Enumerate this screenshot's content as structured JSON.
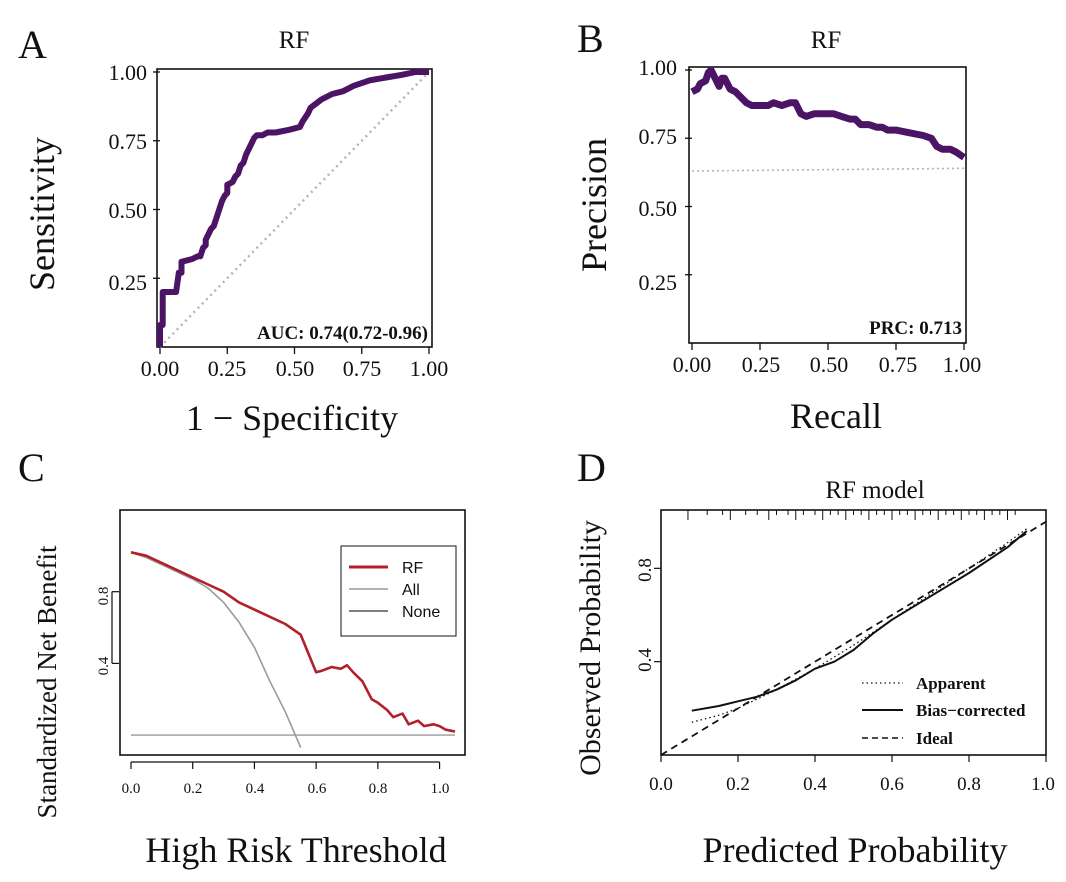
{
  "colors": {
    "roc_line": "#4b1464",
    "dca_model": "#b3202a",
    "dca_all": "#9a9a9a",
    "dca_none": "#555555",
    "reference": "#b4b4b4",
    "axis": "#111111"
  },
  "chart_data": [
    {
      "panel_letter": "A",
      "type": "line",
      "title": "RF",
      "xlabel": "1 − Specificity",
      "ylabel": "Sensitivity",
      "xlim": [
        0,
        1
      ],
      "ylim": [
        0,
        1
      ],
      "xticks": [
        "0.00",
        "0.25",
        "0.50",
        "0.75",
        "1.00"
      ],
      "yticks": [
        "0.25",
        "0.50",
        "0.75",
        "1.00"
      ],
      "annotation": "AUC: 0.74(0.72-0.96)",
      "series": [
        {
          "name": "ROC",
          "x": [
            0.0,
            0.0,
            0.01,
            0.01,
            0.06,
            0.07,
            0.08,
            0.08,
            0.12,
            0.14,
            0.15,
            0.16,
            0.17,
            0.17,
            0.19,
            0.2,
            0.21,
            0.23,
            0.24,
            0.25,
            0.25,
            0.27,
            0.28,
            0.29,
            0.3,
            0.31,
            0.32,
            0.33,
            0.34,
            0.35,
            0.36,
            0.38,
            0.4,
            0.43,
            0.48,
            0.52,
            0.53,
            0.55,
            0.56,
            0.6,
            0.64,
            0.68,
            0.72,
            0.78,
            0.84,
            0.9,
            0.95,
            1.0
          ],
          "y": [
            0.0,
            0.08,
            0.08,
            0.2,
            0.2,
            0.27,
            0.27,
            0.31,
            0.32,
            0.33,
            0.33,
            0.36,
            0.37,
            0.39,
            0.43,
            0.44,
            0.47,
            0.53,
            0.55,
            0.56,
            0.59,
            0.6,
            0.62,
            0.63,
            0.66,
            0.67,
            0.7,
            0.72,
            0.74,
            0.76,
            0.77,
            0.77,
            0.78,
            0.78,
            0.79,
            0.8,
            0.82,
            0.85,
            0.87,
            0.9,
            0.92,
            0.93,
            0.95,
            0.97,
            0.98,
            0.99,
            1.0,
            1.0
          ]
        },
        {
          "name": "chance",
          "x": [
            0,
            1
          ],
          "y": [
            0,
            1
          ]
        }
      ]
    },
    {
      "panel_letter": "B",
      "type": "line",
      "title": "RF",
      "xlabel": "Recall",
      "ylabel": "Precision",
      "xlim": [
        0,
        1
      ],
      "ylim": [
        0,
        1
      ],
      "xticks": [
        "0.00",
        "0.25",
        "0.50",
        "0.75",
        "1.00"
      ],
      "yticks": [
        "0.25",
        "0.50",
        "0.75",
        "1.00"
      ],
      "annotation": "PRC: 0.713",
      "series": [
        {
          "name": "PR",
          "x": [
            0.0,
            0.02,
            0.03,
            0.05,
            0.06,
            0.07,
            0.08,
            0.09,
            0.1,
            0.11,
            0.12,
            0.14,
            0.16,
            0.18,
            0.2,
            0.22,
            0.25,
            0.28,
            0.3,
            0.33,
            0.36,
            0.38,
            0.4,
            0.42,
            0.45,
            0.48,
            0.52,
            0.55,
            0.58,
            0.6,
            0.62,
            0.65,
            0.68,
            0.7,
            0.72,
            0.75,
            0.8,
            0.85,
            0.88,
            0.9,
            0.92,
            0.95,
            0.97,
            1.0
          ],
          "y": [
            0.92,
            0.93,
            0.95,
            0.96,
            0.99,
            1.0,
            0.98,
            0.96,
            0.94,
            0.97,
            0.97,
            0.93,
            0.92,
            0.9,
            0.88,
            0.87,
            0.87,
            0.87,
            0.88,
            0.87,
            0.88,
            0.88,
            0.84,
            0.83,
            0.84,
            0.84,
            0.84,
            0.83,
            0.82,
            0.82,
            0.8,
            0.8,
            0.79,
            0.79,
            0.78,
            0.78,
            0.77,
            0.76,
            0.75,
            0.72,
            0.71,
            0.71,
            0.7,
            0.68
          ]
        },
        {
          "name": "baseline",
          "x": [
            0,
            1
          ],
          "y": [
            0.63,
            0.64
          ]
        }
      ]
    },
    {
      "panel_letter": "C",
      "type": "line",
      "title": "",
      "xlabel": "High Risk Threshold",
      "ylabel": "Standardized Net Benefit",
      "xlim": [
        0,
        1.05
      ],
      "ylim": [
        -0.1,
        1.2
      ],
      "xticks": [
        "0.0",
        "0.2",
        "0.4",
        "0.6",
        "0.8",
        "1.0"
      ],
      "yticks": [
        "0.4",
        "0.8"
      ],
      "legend": [
        "RF",
        "All",
        "None"
      ],
      "legend_position": "top-right",
      "series": [
        {
          "name": "RF",
          "x": [
            0.0,
            0.05,
            0.1,
            0.15,
            0.2,
            0.25,
            0.3,
            0.35,
            0.4,
            0.45,
            0.5,
            0.55,
            0.6,
            0.62,
            0.65,
            0.68,
            0.7,
            0.72,
            0.75,
            0.78,
            0.8,
            0.83,
            0.85,
            0.88,
            0.9,
            0.93,
            0.95,
            0.98,
            1.0,
            1.02,
            1.05
          ],
          "y": [
            1.02,
            1.0,
            0.96,
            0.92,
            0.88,
            0.84,
            0.8,
            0.74,
            0.7,
            0.66,
            0.62,
            0.56,
            0.35,
            0.36,
            0.38,
            0.37,
            0.39,
            0.35,
            0.3,
            0.2,
            0.18,
            0.14,
            0.1,
            0.12,
            0.06,
            0.08,
            0.05,
            0.06,
            0.05,
            0.03,
            0.02
          ]
        },
        {
          "name": "All",
          "x": [
            0.0,
            0.05,
            0.1,
            0.15,
            0.2,
            0.25,
            0.3,
            0.35,
            0.4,
            0.45,
            0.5,
            0.55
          ],
          "y": [
            1.02,
            0.99,
            0.95,
            0.91,
            0.87,
            0.82,
            0.74,
            0.63,
            0.49,
            0.3,
            0.13,
            -0.07
          ]
        },
        {
          "name": "None",
          "x": [
            0,
            1.05
          ],
          "y": [
            0,
            0
          ]
        }
      ]
    },
    {
      "panel_letter": "D",
      "type": "line",
      "title": "RF model",
      "xlabel": "Predicted Probability",
      "ylabel": "Observed Probability",
      "xlim": [
        0,
        1
      ],
      "ylim": [
        0,
        1
      ],
      "xticks": [
        "0.0",
        "0.2",
        "0.4",
        "0.6",
        "0.8",
        "1.0"
      ],
      "yticks": [
        "0.4",
        "0.8"
      ],
      "legend": [
        "Apparent",
        "Bias−corrected",
        "Ideal"
      ],
      "legend_position": "bottom-right",
      "series": [
        {
          "name": "Apparent",
          "x": [
            0.08,
            0.15,
            0.2,
            0.3,
            0.4,
            0.5,
            0.6,
            0.7,
            0.8,
            0.9,
            0.95
          ],
          "y": [
            0.14,
            0.17,
            0.2,
            0.28,
            0.37,
            0.47,
            0.58,
            0.69,
            0.8,
            0.91,
            0.97
          ]
        },
        {
          "name": "Bias−corrected",
          "x": [
            0.08,
            0.15,
            0.2,
            0.25,
            0.3,
            0.35,
            0.4,
            0.45,
            0.5,
            0.55,
            0.6,
            0.7,
            0.8,
            0.9,
            0.95
          ],
          "y": [
            0.19,
            0.21,
            0.23,
            0.25,
            0.28,
            0.32,
            0.37,
            0.4,
            0.45,
            0.52,
            0.58,
            0.68,
            0.78,
            0.89,
            0.96
          ]
        },
        {
          "name": "Ideal",
          "x": [
            0,
            1
          ],
          "y": [
            0,
            1
          ]
        }
      ],
      "rug": [
        0.07,
        0.12,
        0.16,
        0.18,
        0.22,
        0.25,
        0.28,
        0.3,
        0.33,
        0.35,
        0.37,
        0.4,
        0.42,
        0.44,
        0.46,
        0.48,
        0.5,
        0.52,
        0.54,
        0.56,
        0.58,
        0.6,
        0.62,
        0.64,
        0.66,
        0.68,
        0.7,
        0.72,
        0.74,
        0.76,
        0.78,
        0.8,
        0.82,
        0.84,
        0.86,
        0.88,
        0.9,
        0.92
      ]
    }
  ]
}
